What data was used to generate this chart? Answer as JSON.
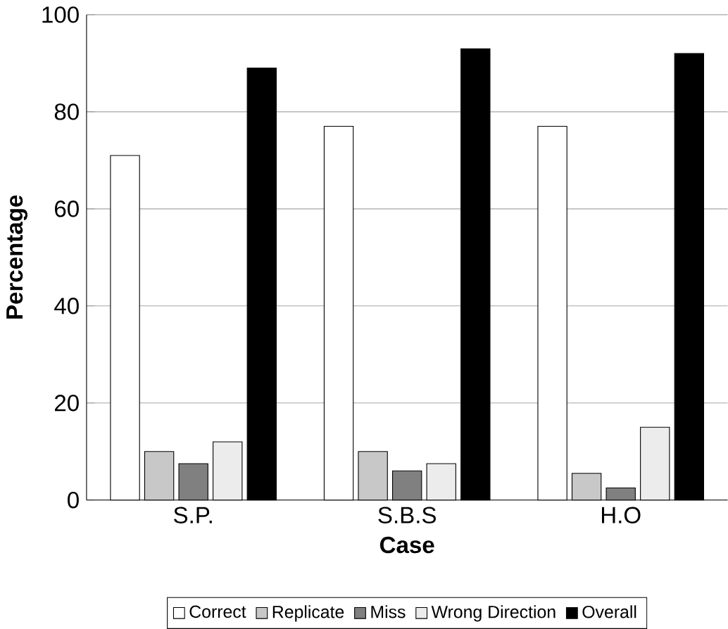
{
  "chart_data": {
    "type": "bar",
    "xlabel": "Case",
    "ylabel": "Percentage",
    "categories": [
      "S.P.",
      "S.B.S",
      "H.O"
    ],
    "series": [
      {
        "name": "Correct",
        "color": "#ffffff",
        "values": [
          71,
          77,
          77
        ]
      },
      {
        "name": "Replicate",
        "color": "#c8c8c8",
        "values": [
          10,
          10,
          5.5
        ]
      },
      {
        "name": "Miss",
        "color": "#808080",
        "values": [
          7.5,
          6,
          2.5
        ]
      },
      {
        "name": "Wrong Direction",
        "color": "#ececec",
        "values": [
          12,
          7.5,
          15
        ]
      },
      {
        "name": "Overall",
        "color": "#000000",
        "values": [
          89,
          93,
          92
        ]
      }
    ],
    "ylim": [
      0,
      100
    ],
    "yticks": [
      0,
      20,
      40,
      60,
      80,
      100
    ],
    "grid": "y",
    "legend": "bottom"
  }
}
